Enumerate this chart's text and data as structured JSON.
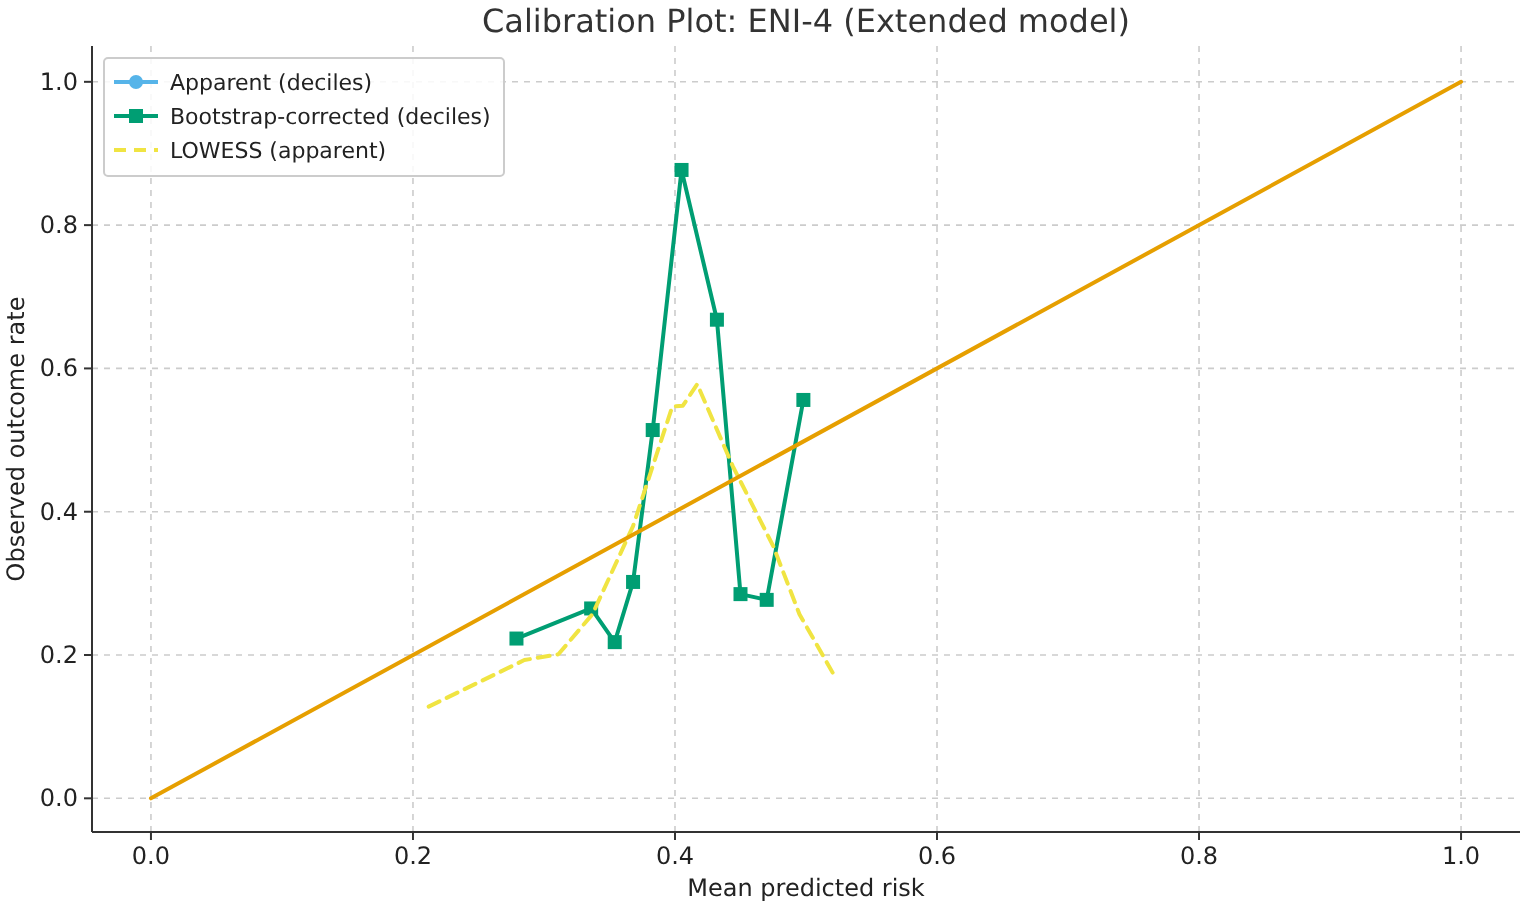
{
  "chart_data": {
    "type": "line",
    "title": "Calibration Plot: ENI-4 (Extended model)",
    "xlabel": "Mean predicted risk",
    "ylabel": "Observed outcome rate",
    "xlim": [
      -0.045,
      1.045
    ],
    "ylim": [
      -0.047,
      1.05
    ],
    "xticks": [
      {
        "value": 0,
        "label": "0.0"
      },
      0.2,
      0.4,
      0.6,
      0.8,
      {
        "value": 1,
        "label": "1.0"
      }
    ],
    "yticks": [
      {
        "value": 0,
        "label": "0.0"
      },
      0.2,
      0.4,
      0.6,
      0.8,
      {
        "value": 1,
        "label": "1.0"
      }
    ],
    "grid": true,
    "legend": "top left",
    "series": [
      {
        "name": "Apparent (deciles)",
        "color": "#56b4e9",
        "marker": "circle"
      },
      {
        "name": "Bootstrap-corrected (deciles)",
        "color": "#009e73",
        "marker": "square",
        "x": [
          0.279,
          0.336,
          0.354,
          0.368,
          0.383,
          0.405,
          0.432,
          0.45,
          0.47,
          0.498
        ],
        "values": [
          0.223,
          0.265,
          0.218,
          0.302,
          0.514,
          0.877,
          0.668,
          0.285,
          0.277,
          0.556
        ]
      },
      {
        "name": "LOWESS (apparent)",
        "color": "#f0e442",
        "line_style": "dashed",
        "marker": "none",
        "x": [
          0.212,
          0.285,
          0.311,
          0.337,
          0.368,
          0.398,
          0.406,
          0.417,
          0.444,
          0.475,
          0.495,
          0.522
        ],
        "values": [
          0.128,
          0.193,
          0.201,
          0.257,
          0.38,
          0.547,
          0.548,
          0.578,
          0.464,
          0.352,
          0.257,
          0.17
        ]
      },
      {
        "color": "#e69f00",
        "marker": "none",
        "x": [
          0,
          1
        ],
        "values": [
          0,
          1
        ]
      }
    ]
  }
}
